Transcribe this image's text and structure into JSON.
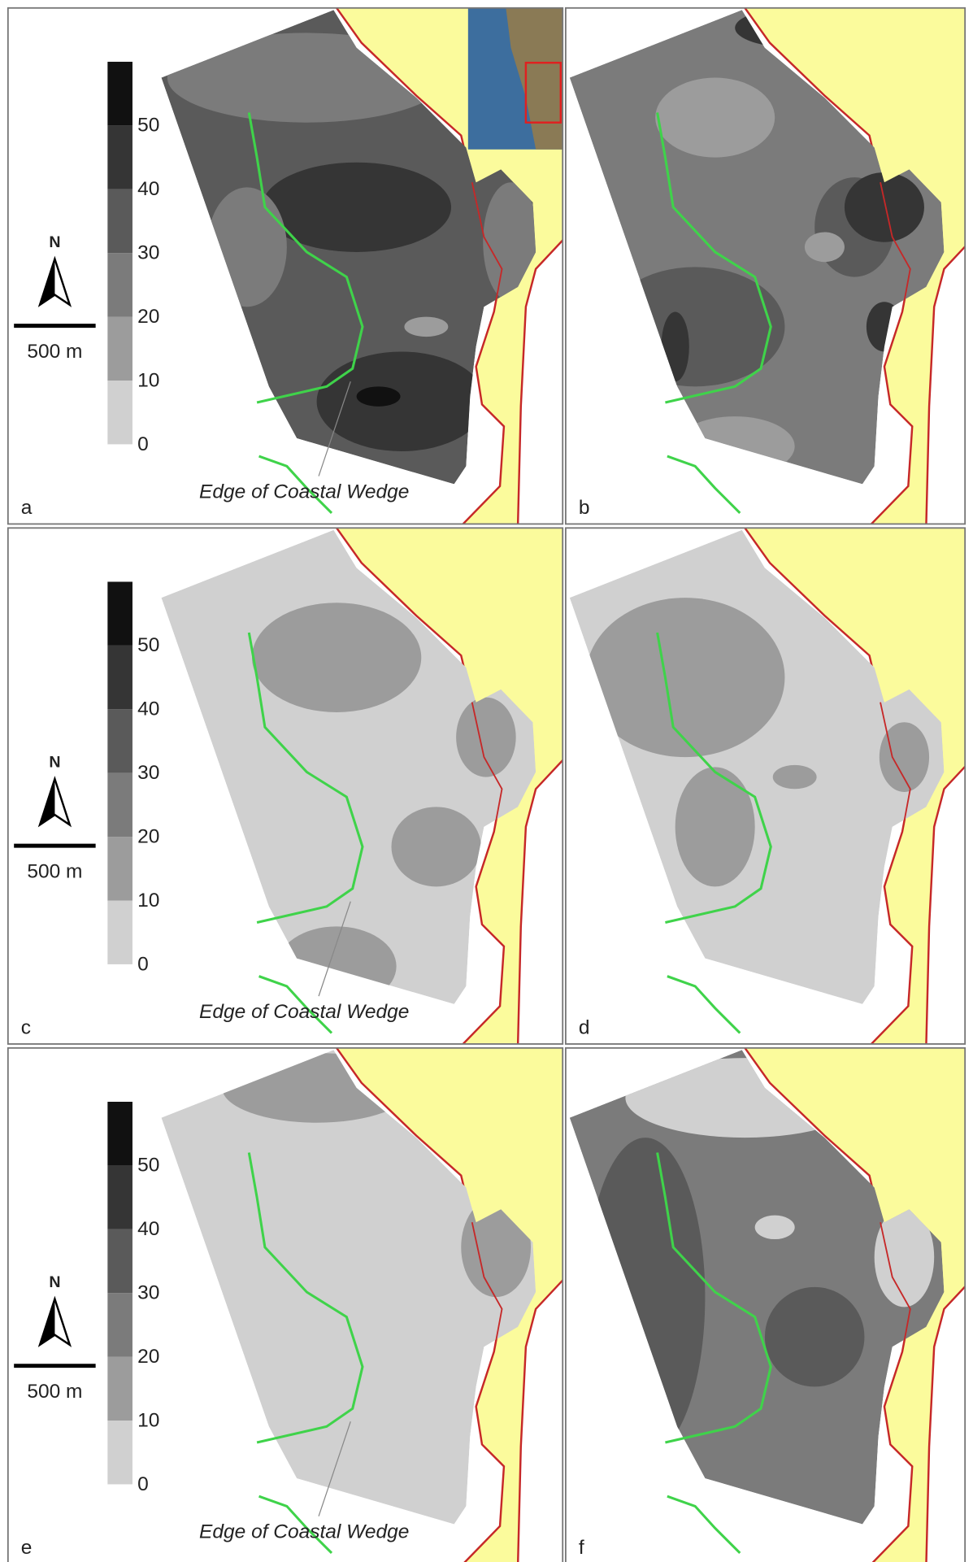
{
  "panels": [
    {
      "label": "a",
      "legend": {
        "ticks": [
          0,
          10,
          20,
          30,
          40,
          50
        ]
      },
      "north": "N",
      "scale": "500 m",
      "annotation": "Edge of Coastal Wedge"
    },
    {
      "label": "b"
    },
    {
      "label": "c",
      "legend": {
        "ticks": [
          0,
          10,
          20,
          30,
          40,
          50
        ]
      },
      "north": "N",
      "scale": "500 m",
      "annotation": "Edge of Coastal Wedge"
    },
    {
      "label": "d"
    },
    {
      "label": "e",
      "legend": {
        "ticks": [
          0,
          10,
          20,
          30,
          40,
          50
        ]
      },
      "north": "N",
      "scale": "500 m",
      "annotation": "Edge of Coastal Wedge"
    },
    {
      "label": "f"
    }
  ]
}
